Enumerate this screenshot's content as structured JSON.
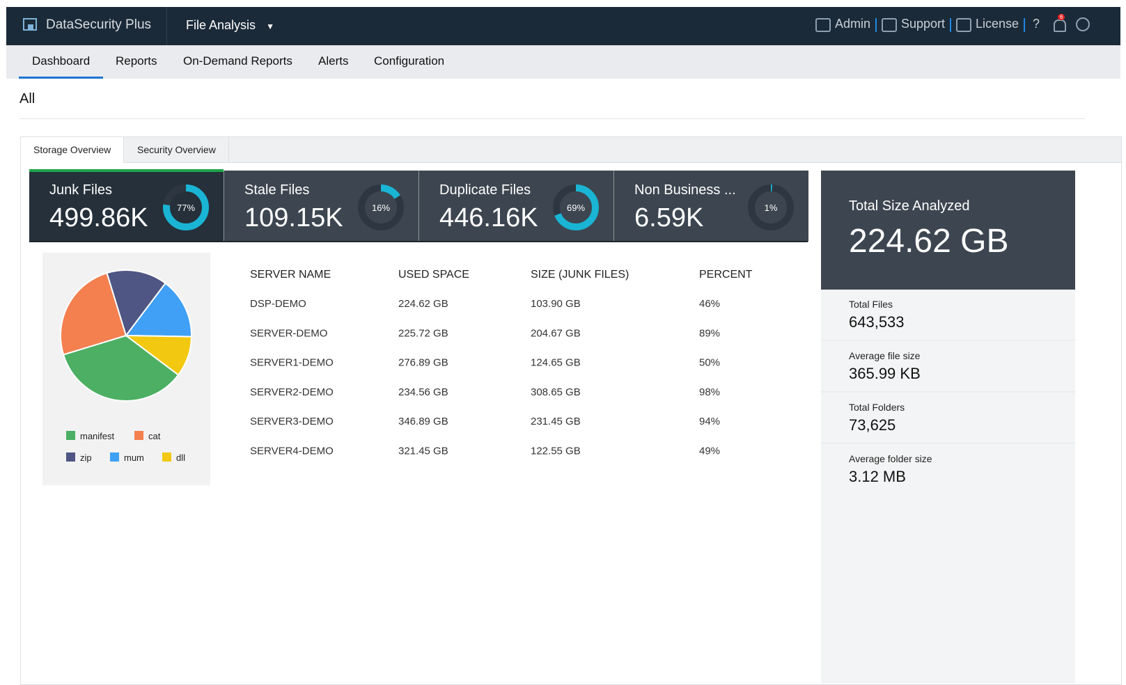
{
  "header": {
    "product": "DataSecurity Plus",
    "module": "File Analysis",
    "links": [
      "Admin",
      "Support",
      "License"
    ],
    "help": "?",
    "notification_count": "6"
  },
  "nav": [
    "Dashboard",
    "Reports",
    "On-Demand Reports",
    "Alerts",
    "Configuration"
  ],
  "scope": "All",
  "tabs": [
    "Storage Overview",
    "Security Overview"
  ],
  "cards": [
    {
      "title": "Junk Files",
      "value": "499.86K",
      "percent": 77,
      "percent_label": "77%"
    },
    {
      "title": "Stale Files",
      "value": "109.15K",
      "percent": 16,
      "percent_label": "16%"
    },
    {
      "title": "Duplicate Files",
      "value": "446.16K",
      "percent": 69,
      "percent_label": "69%"
    },
    {
      "title": "Non Business ...",
      "value": "6.59K",
      "percent": 1,
      "percent_label": "1%"
    }
  ],
  "chart_data": {
    "type": "pie",
    "categories": [
      "manifest",
      "cat",
      "zip",
      "mum",
      "dll"
    ],
    "values": [
      35,
      25,
      15,
      15,
      10
    ],
    "colors": [
      "#4caf63",
      "#f47f4f",
      "#4f5683",
      "#3fa0f5",
      "#f2c811"
    ]
  },
  "table": {
    "columns": [
      "SERVER NAME",
      "USED SPACE",
      "SIZE (JUNK FILES)",
      "PERCENT"
    ],
    "rows": [
      [
        "DSP-DEMO",
        "224.62 GB",
        "103.90 GB",
        "46%"
      ],
      [
        "SERVER-DEMO",
        "225.72 GB",
        "204.67 GB",
        "89%"
      ],
      [
        "SERVER1-DEMO",
        "276.89 GB",
        "124.65 GB",
        "50%"
      ],
      [
        "SERVER2-DEMO",
        "234.56 GB",
        "308.65 GB",
        "98%"
      ],
      [
        "SERVER3-DEMO",
        "346.89 GB",
        "231.45 GB",
        "94%"
      ],
      [
        "SERVER4-DEMO",
        "321.45 GB",
        "122.55 GB",
        "49%"
      ]
    ]
  },
  "summary": {
    "title": "Total Size Analyzed",
    "value": "224.62 GB",
    "stats": [
      {
        "label": "Total Files",
        "value": "643,533"
      },
      {
        "label": "Average file size",
        "value": "365.99 KB"
      },
      {
        "label": "Total Folders",
        "value": "73,625"
      },
      {
        "label": "Average folder size",
        "value": "3.12 MB"
      }
    ]
  }
}
